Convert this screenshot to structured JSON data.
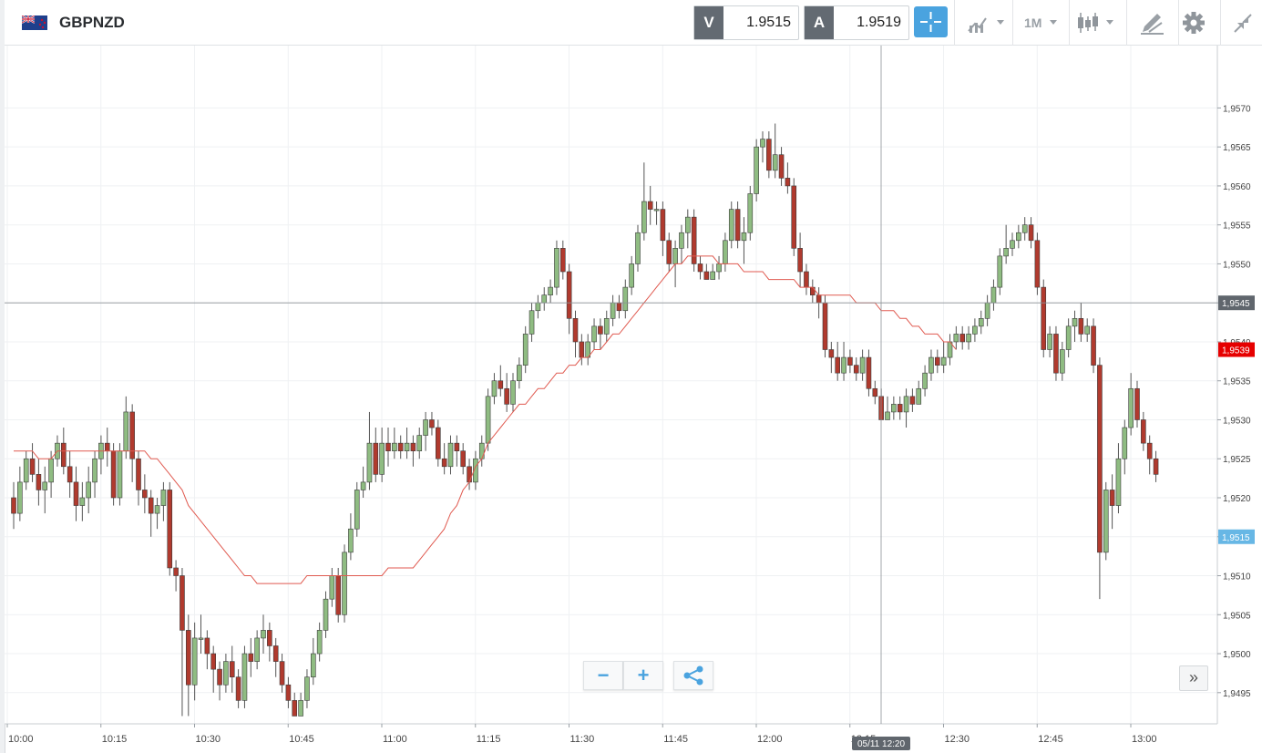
{
  "header": {
    "symbol": "GBPNZD",
    "sell_tag": "V",
    "sell_price": "1.9515",
    "buy_tag": "A",
    "buy_price": "1.9519",
    "timeframe": "1M"
  },
  "icons": {
    "flag": "gb-nz-flag-icon",
    "crosshair": "crosshair-icon",
    "indicators": "indicators-icon",
    "chart_type": "candlestick-icon",
    "draw": "pencil-icon",
    "settings": "gear-icon",
    "collapse": "collapse-icon",
    "zoom_out": "minus-icon",
    "zoom_in": "plus-icon",
    "share": "share-icon",
    "scroll": "double-chevron-right-icon"
  },
  "controls": {
    "zoom_out": "−",
    "zoom_in": "+",
    "scroll_right": "»"
  },
  "colors": {
    "up_candle": "#8fbc82",
    "down_candle": "#b03a2e",
    "moving_average": "#e05a50",
    "price_tag_red": "#e60000",
    "price_tag_blue": "#67b7e5",
    "accent": "#4aa3df"
  },
  "chart_data": {
    "type": "candlestick",
    "symbol": "GBPNZD",
    "interval": "1M",
    "x_tick_labels": [
      "10:00",
      "10:15",
      "10:30",
      "10:45",
      "11:00",
      "11:15",
      "11:30",
      "11:45",
      "12:00",
      "12:15",
      "12:30",
      "12:45",
      "13:00"
    ],
    "y_tick_labels": [
      "1,9570",
      "1,9565",
      "1,9560",
      "1,9555",
      "1,9550",
      "1,9545",
      "1,9540",
      "1,9535",
      "1,9530",
      "1,9525",
      "1,9520",
      "1,9515",
      "1,9510",
      "1,9505",
      "1,9500",
      "1,9495"
    ],
    "ylim": [
      1.9491,
      1.9578
    ],
    "grid": true,
    "crosshair": {
      "price": "1,9545",
      "time": "05/11 12:20"
    },
    "price_labels": [
      {
        "label": "1,9539",
        "value": 1.9539,
        "color": "#e60000"
      },
      {
        "label": "1,9515",
        "value": 1.9515,
        "color": "#67b7e5"
      }
    ],
    "candles": [
      [
        1.952,
        1.9518,
        1.9522,
        1.9516
      ],
      [
        1.9518,
        1.9522,
        1.9524,
        1.9517
      ],
      [
        1.9522,
        1.9525,
        1.9526,
        1.9521
      ],
      [
        1.9525,
        1.9523,
        1.9527,
        1.9522
      ],
      [
        1.9523,
        1.9521,
        1.9525,
        1.9519
      ],
      [
        1.9521,
        1.9522,
        1.9524,
        1.9518
      ],
      [
        1.9522,
        1.9525,
        1.9526,
        1.952
      ],
      [
        1.9525,
        1.9527,
        1.9528,
        1.9524
      ],
      [
        1.9527,
        1.9524,
        1.9529,
        1.9523
      ],
      [
        1.9524,
        1.9522,
        1.9526,
        1.952
      ],
      [
        1.9522,
        1.9519,
        1.9524,
        1.9517
      ],
      [
        1.9519,
        1.952,
        1.9522,
        1.9517
      ],
      [
        1.952,
        1.9522,
        1.9524,
        1.9518
      ],
      [
        1.9522,
        1.9525,
        1.9526,
        1.952
      ],
      [
        1.9525,
        1.9527,
        1.9528,
        1.9523
      ],
      [
        1.9527,
        1.9526,
        1.9529,
        1.9524
      ],
      [
        1.9526,
        1.952,
        1.9527,
        1.9519
      ],
      [
        1.952,
        1.9526,
        1.9527,
        1.9519
      ],
      [
        1.9526,
        1.9531,
        1.9533,
        1.9525
      ],
      [
        1.9531,
        1.9525,
        1.9532,
        1.9522
      ],
      [
        1.9525,
        1.9521,
        1.9526,
        1.9519
      ],
      [
        1.9521,
        1.952,
        1.9523,
        1.9518
      ],
      [
        1.952,
        1.9518,
        1.9521,
        1.9515
      ],
      [
        1.9518,
        1.9519,
        1.952,
        1.9516
      ],
      [
        1.9519,
        1.9521,
        1.9522,
        1.9517
      ],
      [
        1.9521,
        1.9511,
        1.9522,
        1.951
      ],
      [
        1.9511,
        1.951,
        1.9512,
        1.9508
      ],
      [
        1.951,
        1.9503,
        1.9511,
        1.9492
      ],
      [
        1.9503,
        1.9496,
        1.9505,
        1.9492
      ],
      [
        1.9496,
        1.9502,
        1.9504,
        1.9494
      ],
      [
        1.9502,
        1.9502,
        1.9505,
        1.95
      ],
      [
        1.9502,
        1.95,
        1.9503,
        1.9498
      ],
      [
        1.95,
        1.9498,
        1.9501,
        1.9495
      ],
      [
        1.9498,
        1.9496,
        1.9499,
        1.9494
      ],
      [
        1.9496,
        1.9499,
        1.95,
        1.9495
      ],
      [
        1.9499,
        1.9497,
        1.9501,
        1.9495
      ],
      [
        1.9497,
        1.9494,
        1.9498,
        1.9493
      ],
      [
        1.9494,
        1.95,
        1.9501,
        1.9493
      ],
      [
        1.95,
        1.9499,
        1.9502,
        1.9497
      ],
      [
        1.9499,
        1.9502,
        1.9503,
        1.9498
      ],
      [
        1.9502,
        1.9503,
        1.9505,
        1.95
      ],
      [
        1.9503,
        1.9501,
        1.9504,
        1.9499
      ],
      [
        1.9501,
        1.9499,
        1.9502,
        1.9497
      ],
      [
        1.9499,
        1.9496,
        1.95,
        1.9495
      ],
      [
        1.9496,
        1.9494,
        1.9497,
        1.9493
      ],
      [
        1.9494,
        1.9492,
        1.9495,
        1.9492
      ],
      [
        1.9492,
        1.9494,
        1.9495,
        1.9492
      ],
      [
        1.9494,
        1.9497,
        1.9498,
        1.9493
      ],
      [
        1.9497,
        1.95,
        1.9502,
        1.9496
      ],
      [
        1.95,
        1.9503,
        1.9504,
        1.9499
      ],
      [
        1.9503,
        1.9507,
        1.9508,
        1.9502
      ],
      [
        1.9507,
        1.951,
        1.9511,
        1.9506
      ],
      [
        1.951,
        1.9505,
        1.9511,
        1.9504
      ],
      [
        1.9505,
        1.9513,
        1.9514,
        1.9504
      ],
      [
        1.9513,
        1.9516,
        1.9518,
        1.9512
      ],
      [
        1.9516,
        1.9521,
        1.9522,
        1.9515
      ],
      [
        1.9521,
        1.9522,
        1.9524,
        1.952
      ],
      [
        1.9522,
        1.9527,
        1.9531,
        1.9521
      ],
      [
        1.9527,
        1.9523,
        1.9529,
        1.9522
      ],
      [
        1.9523,
        1.9527,
        1.9529,
        1.9522
      ],
      [
        1.9527,
        1.9526,
        1.9529,
        1.9524
      ],
      [
        1.9526,
        1.9527,
        1.9529,
        1.9525
      ],
      [
        1.9527,
        1.9526,
        1.9528,
        1.9525
      ],
      [
        1.9526,
        1.9527,
        1.9529,
        1.9525
      ],
      [
        1.9527,
        1.9526,
        1.9528,
        1.9524
      ],
      [
        1.9526,
        1.9528,
        1.9529,
        1.9525
      ],
      [
        1.9528,
        1.953,
        1.9531,
        1.9526
      ],
      [
        1.953,
        1.9529,
        1.9531,
        1.9528
      ],
      [
        1.9529,
        1.9525,
        1.953,
        1.9524
      ],
      [
        1.9525,
        1.9524,
        1.9527,
        1.9523
      ],
      [
        1.9524,
        1.9527,
        1.9528,
        1.9523
      ],
      [
        1.9527,
        1.9526,
        1.9528,
        1.9524
      ],
      [
        1.9526,
        1.9524,
        1.9527,
        1.9523
      ],
      [
        1.9524,
        1.9522,
        1.9525,
        1.9521
      ],
      [
        1.9522,
        1.9525,
        1.9526,
        1.9521
      ],
      [
        1.9525,
        1.9527,
        1.9528,
        1.9524
      ],
      [
        1.9527,
        1.9533,
        1.9534,
        1.9526
      ],
      [
        1.9533,
        1.9535,
        1.9536,
        1.9532
      ],
      [
        1.9535,
        1.9534,
        1.9537,
        1.9533
      ],
      [
        1.9534,
        1.9532,
        1.9536,
        1.9531
      ],
      [
        1.9532,
        1.9535,
        1.9536,
        1.9531
      ],
      [
        1.9535,
        1.9537,
        1.9538,
        1.9534
      ],
      [
        1.9537,
        1.9541,
        1.9542,
        1.9536
      ],
      [
        1.9541,
        1.9544,
        1.9545,
        1.954
      ],
      [
        1.9544,
        1.9545,
        1.9546,
        1.9543
      ],
      [
        1.9545,
        1.9546,
        1.9547,
        1.9544
      ],
      [
        1.9546,
        1.9547,
        1.9548,
        1.9545
      ],
      [
        1.9547,
        1.9552,
        1.9553,
        1.9546
      ],
      [
        1.9552,
        1.9549,
        1.9553,
        1.9548
      ],
      [
        1.9549,
        1.9543,
        1.955,
        1.9541
      ],
      [
        1.9543,
        1.954,
        1.9544,
        1.9538
      ],
      [
        1.954,
        1.9538,
        1.9541,
        1.9537
      ],
      [
        1.9538,
        1.954,
        1.9541,
        1.9537
      ],
      [
        1.954,
        1.9542,
        1.9543,
        1.9539
      ],
      [
        1.9542,
        1.9541,
        1.9543,
        1.9539
      ],
      [
        1.9541,
        1.9543,
        1.9544,
        1.954
      ],
      [
        1.9543,
        1.9545,
        1.9546,
        1.9542
      ],
      [
        1.9545,
        1.9544,
        1.9546,
        1.9543
      ],
      [
        1.9544,
        1.9547,
        1.9548,
        1.9543
      ],
      [
        1.9547,
        1.955,
        1.9551,
        1.9546
      ],
      [
        1.955,
        1.9554,
        1.9555,
        1.9549
      ],
      [
        1.9554,
        1.9558,
        1.9563,
        1.9553
      ],
      [
        1.9558,
        1.9557,
        1.956,
        1.9555
      ],
      [
        1.9557,
        1.9557,
        1.9558,
        1.9555
      ],
      [
        1.9557,
        1.9553,
        1.9558,
        1.9551
      ],
      [
        1.9553,
        1.955,
        1.9554,
        1.9549
      ],
      [
        1.955,
        1.9552,
        1.9553,
        1.9547
      ],
      [
        1.9552,
        1.9554,
        1.9555,
        1.955
      ],
      [
        1.9554,
        1.9556,
        1.9557,
        1.9552
      ],
      [
        1.9556,
        1.955,
        1.9557,
        1.9549
      ],
      [
        1.955,
        1.9549,
        1.9551,
        1.9548
      ],
      [
        1.9549,
        1.9548,
        1.955,
        1.9548
      ],
      [
        1.9548,
        1.9549,
        1.955,
        1.9548
      ],
      [
        1.9549,
        1.955,
        1.9551,
        1.9548
      ],
      [
        1.955,
        1.9553,
        1.9554,
        1.9549
      ],
      [
        1.9553,
        1.9557,
        1.9558,
        1.9552
      ],
      [
        1.9557,
        1.9553,
        1.9558,
        1.9552
      ],
      [
        1.9553,
        1.9554,
        1.9556,
        1.955
      ],
      [
        1.9554,
        1.9559,
        1.956,
        1.9553
      ],
      [
        1.9559,
        1.9565,
        1.9566,
        1.9558
      ],
      [
        1.9565,
        1.9566,
        1.9567,
        1.9563
      ],
      [
        1.9566,
        1.9562,
        1.9567,
        1.9561
      ],
      [
        1.9562,
        1.9564,
        1.9568,
        1.9561
      ],
      [
        1.9564,
        1.9561,
        1.9565,
        1.956
      ],
      [
        1.9561,
        1.956,
        1.9563,
        1.9559
      ],
      [
        1.956,
        1.9552,
        1.9561,
        1.9551
      ],
      [
        1.9552,
        1.9549,
        1.9554,
        1.9547
      ],
      [
        1.9549,
        1.9547,
        1.955,
        1.9546
      ],
      [
        1.9547,
        1.9546,
        1.9548,
        1.9545
      ],
      [
        1.9546,
        1.9545,
        1.9547,
        1.9543
      ],
      [
        1.9545,
        1.9539,
        1.9546,
        1.9538
      ],
      [
        1.9539,
        1.9538,
        1.954,
        1.9536
      ],
      [
        1.9538,
        1.9536,
        1.954,
        1.9535
      ],
      [
        1.9536,
        1.9538,
        1.954,
        1.9535
      ],
      [
        1.9538,
        1.9537,
        1.9539,
        1.9536
      ],
      [
        1.9537,
        1.9536,
        1.9538,
        1.9535
      ],
      [
        1.9536,
        1.9538,
        1.9539,
        1.9535
      ],
      [
        1.9538,
        1.9534,
        1.9539,
        1.9533
      ],
      [
        1.9534,
        1.9533,
        1.9535,
        1.9532
      ],
      [
        1.9533,
        1.953,
        1.9534,
        1.953
      ],
      [
        1.953,
        1.9531,
        1.9533,
        1.953
      ],
      [
        1.9531,
        1.9532,
        1.9533,
        1.953
      ],
      [
        1.9532,
        1.9531,
        1.9533,
        1.953
      ],
      [
        1.9531,
        1.9533,
        1.9534,
        1.9529
      ],
      [
        1.9533,
        1.9532,
        1.9534,
        1.9531
      ],
      [
        1.9532,
        1.9534,
        1.9535,
        1.9532
      ],
      [
        1.9534,
        1.9536,
        1.9537,
        1.9533
      ],
      [
        1.9536,
        1.9538,
        1.9539,
        1.9535
      ],
      [
        1.9538,
        1.9537,
        1.9539,
        1.9536
      ],
      [
        1.9537,
        1.9538,
        1.954,
        1.9536
      ],
      [
        1.9538,
        1.954,
        1.9541,
        1.9537
      ],
      [
        1.954,
        1.9541,
        1.9542,
        1.9539
      ],
      [
        1.9541,
        1.954,
        1.9542,
        1.9539
      ],
      [
        1.954,
        1.9541,
        1.9542,
        1.9539
      ],
      [
        1.9541,
        1.9542,
        1.9543,
        1.954
      ],
      [
        1.9542,
        1.9543,
        1.9544,
        1.9541
      ],
      [
        1.9543,
        1.9545,
        1.9546,
        1.9542
      ],
      [
        1.9545,
        1.9547,
        1.9548,
        1.9544
      ],
      [
        1.9547,
        1.9551,
        1.9552,
        1.9546
      ],
      [
        1.9551,
        1.9552,
        1.9555,
        1.955
      ],
      [
        1.9552,
        1.9553,
        1.9554,
        1.9551
      ],
      [
        1.9553,
        1.9554,
        1.9555,
        1.9552
      ],
      [
        1.9554,
        1.9555,
        1.9556,
        1.9553
      ],
      [
        1.9555,
        1.9553,
        1.9556,
        1.9552
      ],
      [
        1.9553,
        1.9547,
        1.9554,
        1.9546
      ],
      [
        1.9547,
        1.9539,
        1.9548,
        1.9538
      ],
      [
        1.9539,
        1.9541,
        1.9542,
        1.9538
      ],
      [
        1.9541,
        1.9536,
        1.9542,
        1.9535
      ],
      [
        1.9536,
        1.9539,
        1.954,
        1.9535
      ],
      [
        1.9539,
        1.9542,
        1.9543,
        1.9538
      ],
      [
        1.9542,
        1.9543,
        1.9544,
        1.954
      ],
      [
        1.9543,
        1.9541,
        1.9545,
        1.954
      ],
      [
        1.9541,
        1.9542,
        1.9543,
        1.954
      ],
      [
        1.9542,
        1.9537,
        1.9543,
        1.9536
      ],
      [
        1.9537,
        1.9513,
        1.9538,
        1.9507
      ],
      [
        1.9513,
        1.9521,
        1.9522,
        1.9512
      ],
      [
        1.9521,
        1.9519,
        1.9523,
        1.9516
      ],
      [
        1.9519,
        1.9525,
        1.9527,
        1.9518
      ],
      [
        1.9525,
        1.9529,
        1.953,
        1.9523
      ],
      [
        1.9529,
        1.9534,
        1.9536,
        1.9528
      ],
      [
        1.9534,
        1.953,
        1.9535,
        1.9529
      ],
      [
        1.953,
        1.9527,
        1.9531,
        1.9526
      ],
      [
        1.9527,
        1.9525,
        1.9528,
        1.9523
      ],
      [
        1.9525,
        1.9523,
        1.9526,
        1.9522
      ]
    ],
    "moving_average": [
      1.9526,
      1.9526,
      1.9526,
      1.9526,
      1.9525,
      1.9525,
      1.9525,
      1.9526,
      1.9526,
      1.9526,
      1.9526,
      1.9526,
      1.9526,
      1.9526,
      1.9526,
      1.9526,
      1.9526,
      1.9526,
      1.9526,
      1.9526,
      1.9526,
      1.9526,
      1.9525,
      1.9525,
      1.9524,
      1.9523,
      1.9522,
      1.9521,
      1.9519,
      1.9518,
      1.9517,
      1.9516,
      1.9515,
      1.9514,
      1.9513,
      1.9512,
      1.9511,
      1.951,
      1.951,
      1.9509,
      1.9509,
      1.9509,
      1.9509,
      1.9509,
      1.9509,
      1.9509,
      1.9509,
      1.951,
      1.951,
      1.951,
      1.951,
      1.951,
      1.951,
      1.951,
      1.951,
      1.951,
      1.951,
      1.951,
      1.951,
      1.951,
      1.9511,
      1.9511,
      1.9511,
      1.9511,
      1.9511,
      1.9512,
      1.9513,
      1.9514,
      1.9515,
      1.9516,
      1.9518,
      1.9519,
      1.9521,
      1.9522,
      1.9524,
      1.9525,
      1.9527,
      1.9528,
      1.9529,
      1.953,
      1.9531,
      1.9532,
      1.9532,
      1.9533,
      1.9534,
      1.9534,
      1.9535,
      1.9536,
      1.9536,
      1.9537,
      1.9537,
      1.9538,
      1.9538,
      1.9539,
      1.9539,
      1.954,
      1.9541,
      1.9541,
      1.9542,
      1.9543,
      1.9544,
      1.9545,
      1.9546,
      1.9547,
      1.9548,
      1.9549,
      1.955,
      1.955,
      1.9551,
      1.9551,
      1.9551,
      1.9551,
      1.9551,
      1.955,
      1.955,
      1.955,
      1.955,
      1.9549,
      1.9549,
      1.9549,
      1.9549,
      1.9548,
      1.9548,
      1.9548,
      1.9548,
      1.9548,
      1.9547,
      1.9547,
      1.9547,
      1.9546,
      1.9546,
      1.9546,
      1.9546,
      1.9546,
      1.9546,
      1.9545,
      1.9545,
      1.9545,
      1.9545,
      1.9544,
      1.9544,
      1.9544,
      1.9543,
      1.9543,
      1.9542,
      1.9542,
      1.9541,
      1.9541,
      1.9541,
      1.954,
      1.954,
      1.9539
    ]
  }
}
